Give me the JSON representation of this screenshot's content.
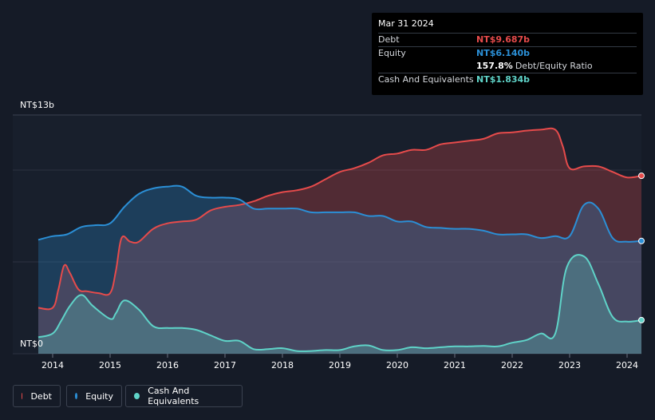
{
  "tooltip": {
    "date": "Mar 31 2024",
    "rows": [
      {
        "label": "Debt",
        "value": "NT$9.687b",
        "color": "#e64b4b"
      },
      {
        "label": "Equity",
        "value": "NT$6.140b",
        "color": "#2b8fd6"
      },
      {
        "label": "",
        "value": "157.8%",
        "suffix": "Debt/Equity Ratio",
        "color": "#ffffff"
      },
      {
        "label": "Cash And Equivalents",
        "value": "NT$1.834b",
        "color": "#5fd3c8"
      }
    ]
  },
  "legend": [
    {
      "label": "Debt",
      "color": "#e64b4b"
    },
    {
      "label": "Equity",
      "color": "#2b8fd6"
    },
    {
      "label": "Cash And Equivalents",
      "color": "#5fd3c8"
    }
  ],
  "chart_data": {
    "type": "area",
    "title": "",
    "y_top_label": "NT$13b",
    "y_bottom_label": "NT$0",
    "ylim": [
      0,
      13
    ],
    "xlim": [
      2013.75,
      2024.25
    ],
    "x_ticks": [
      "2014",
      "2015",
      "2016",
      "2017",
      "2018",
      "2019",
      "2020",
      "2021",
      "2022",
      "2023",
      "2024"
    ],
    "series": [
      {
        "name": "Debt",
        "color": "#e64b4b",
        "points": [
          [
            2013.75,
            2.5
          ],
          [
            2014.0,
            2.5
          ],
          [
            2014.1,
            3.5
          ],
          [
            2014.2,
            4.8
          ],
          [
            2014.3,
            4.4
          ],
          [
            2014.45,
            3.5
          ],
          [
            2014.6,
            3.4
          ],
          [
            2014.8,
            3.3
          ],
          [
            2015.0,
            3.3
          ],
          [
            2015.1,
            4.5
          ],
          [
            2015.2,
            6.3
          ],
          [
            2015.35,
            6.1
          ],
          [
            2015.5,
            6.1
          ],
          [
            2015.75,
            6.8
          ],
          [
            2016.0,
            7.1
          ],
          [
            2016.25,
            7.2
          ],
          [
            2016.5,
            7.3
          ],
          [
            2016.75,
            7.8
          ],
          [
            2017.0,
            8.0
          ],
          [
            2017.25,
            8.1
          ],
          [
            2017.5,
            8.3
          ],
          [
            2017.75,
            8.6
          ],
          [
            2018.0,
            8.8
          ],
          [
            2018.25,
            8.9
          ],
          [
            2018.5,
            9.1
          ],
          [
            2018.75,
            9.5
          ],
          [
            2019.0,
            9.9
          ],
          [
            2019.25,
            10.1
          ],
          [
            2019.5,
            10.4
          ],
          [
            2019.75,
            10.8
          ],
          [
            2020.0,
            10.9
          ],
          [
            2020.25,
            11.1
          ],
          [
            2020.5,
            11.1
          ],
          [
            2020.75,
            11.4
          ],
          [
            2021.0,
            11.5
          ],
          [
            2021.25,
            11.6
          ],
          [
            2021.5,
            11.7
          ],
          [
            2021.75,
            12.0
          ],
          [
            2022.0,
            12.05
          ],
          [
            2022.25,
            12.15
          ],
          [
            2022.5,
            12.2
          ],
          [
            2022.75,
            12.2
          ],
          [
            2022.88,
            11.3
          ],
          [
            2023.0,
            10.1
          ],
          [
            2023.25,
            10.2
          ],
          [
            2023.5,
            10.2
          ],
          [
            2023.75,
            9.9
          ],
          [
            2024.0,
            9.6
          ],
          [
            2024.25,
            9.69
          ]
        ]
      },
      {
        "name": "Equity",
        "color": "#2b8fd6",
        "points": [
          [
            2013.75,
            6.2
          ],
          [
            2014.0,
            6.4
          ],
          [
            2014.25,
            6.5
          ],
          [
            2014.5,
            6.9
          ],
          [
            2014.75,
            7.0
          ],
          [
            2015.0,
            7.1
          ],
          [
            2015.25,
            8.0
          ],
          [
            2015.5,
            8.7
          ],
          [
            2015.75,
            9.0
          ],
          [
            2016.0,
            9.1
          ],
          [
            2016.25,
            9.1
          ],
          [
            2016.5,
            8.6
          ],
          [
            2016.75,
            8.5
          ],
          [
            2017.0,
            8.5
          ],
          [
            2017.25,
            8.4
          ],
          [
            2017.5,
            7.9
          ],
          [
            2017.75,
            7.9
          ],
          [
            2018.0,
            7.9
          ],
          [
            2018.25,
            7.9
          ],
          [
            2018.5,
            7.7
          ],
          [
            2018.75,
            7.7
          ],
          [
            2019.0,
            7.7
          ],
          [
            2019.25,
            7.7
          ],
          [
            2019.5,
            7.5
          ],
          [
            2019.75,
            7.5
          ],
          [
            2020.0,
            7.2
          ],
          [
            2020.25,
            7.2
          ],
          [
            2020.5,
            6.9
          ],
          [
            2020.75,
            6.85
          ],
          [
            2021.0,
            6.8
          ],
          [
            2021.25,
            6.8
          ],
          [
            2021.5,
            6.7
          ],
          [
            2021.75,
            6.5
          ],
          [
            2022.0,
            6.5
          ],
          [
            2022.25,
            6.5
          ],
          [
            2022.5,
            6.3
          ],
          [
            2022.75,
            6.4
          ],
          [
            2023.0,
            6.4
          ],
          [
            2023.25,
            8.1
          ],
          [
            2023.5,
            7.9
          ],
          [
            2023.75,
            6.3
          ],
          [
            2024.0,
            6.1
          ],
          [
            2024.25,
            6.14
          ]
        ]
      },
      {
        "name": "Cash And Equivalents",
        "color": "#5fd3c8",
        "points": [
          [
            2013.75,
            0.9
          ],
          [
            2014.0,
            1.1
          ],
          [
            2014.15,
            1.8
          ],
          [
            2014.3,
            2.6
          ],
          [
            2014.5,
            3.2
          ],
          [
            2014.7,
            2.6
          ],
          [
            2015.0,
            1.9
          ],
          [
            2015.1,
            2.2
          ],
          [
            2015.25,
            2.9
          ],
          [
            2015.5,
            2.4
          ],
          [
            2015.75,
            1.5
          ],
          [
            2016.0,
            1.4
          ],
          [
            2016.25,
            1.4
          ],
          [
            2016.5,
            1.3
          ],
          [
            2016.75,
            1.0
          ],
          [
            2017.0,
            0.7
          ],
          [
            2017.25,
            0.7
          ],
          [
            2017.5,
            0.25
          ],
          [
            2017.75,
            0.25
          ],
          [
            2018.0,
            0.3
          ],
          [
            2018.25,
            0.15
          ],
          [
            2018.5,
            0.15
          ],
          [
            2018.75,
            0.2
          ],
          [
            2019.0,
            0.2
          ],
          [
            2019.25,
            0.4
          ],
          [
            2019.5,
            0.45
          ],
          [
            2019.75,
            0.2
          ],
          [
            2020.0,
            0.2
          ],
          [
            2020.25,
            0.35
          ],
          [
            2020.5,
            0.3
          ],
          [
            2020.75,
            0.35
          ],
          [
            2021.0,
            0.4
          ],
          [
            2021.25,
            0.4
          ],
          [
            2021.5,
            0.42
          ],
          [
            2021.75,
            0.4
          ],
          [
            2022.0,
            0.6
          ],
          [
            2022.25,
            0.75
          ],
          [
            2022.5,
            1.1
          ],
          [
            2022.75,
            1.1
          ],
          [
            2022.95,
            4.7
          ],
          [
            2023.25,
            5.3
          ],
          [
            2023.5,
            3.8
          ],
          [
            2023.75,
            2.0
          ],
          [
            2024.0,
            1.75
          ],
          [
            2024.25,
            1.83
          ]
        ]
      }
    ]
  }
}
